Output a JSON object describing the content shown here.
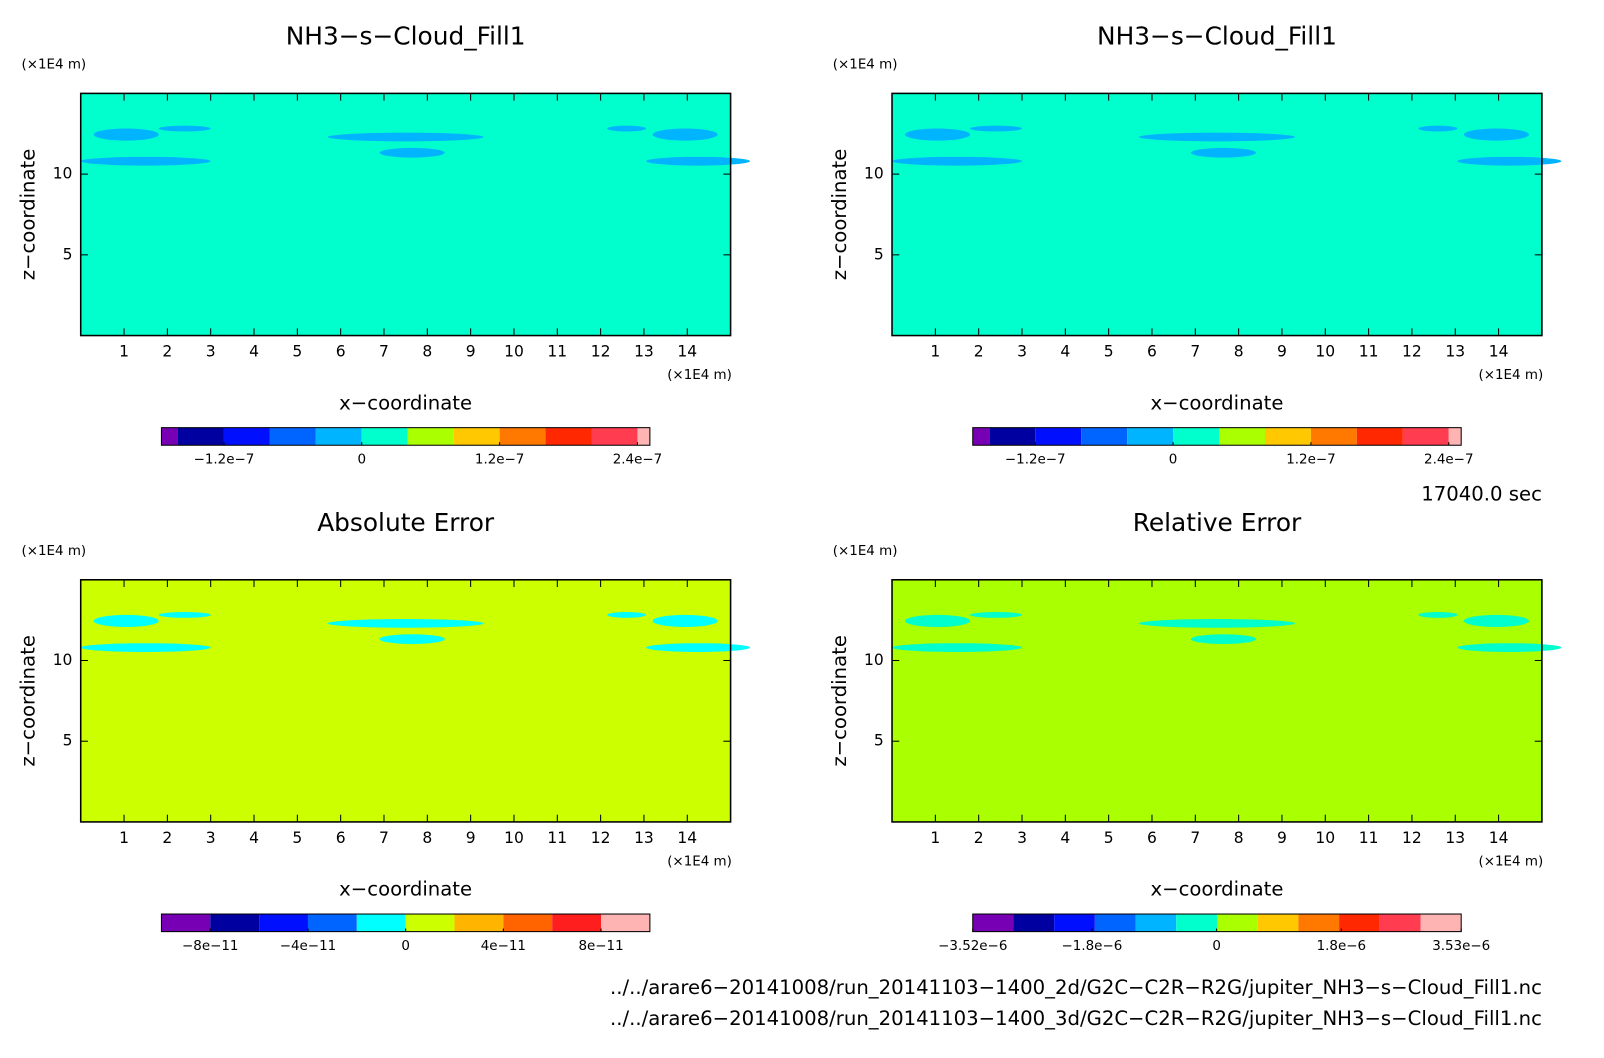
{
  "chart_data": [
    {
      "type": "contour",
      "title": "NH3−s−Cloud_Fill1",
      "x_label": "x−coordinate",
      "y_label": "z−coordinate",
      "x_unit": "(×1E4 m)",
      "y_unit": "(×1E4 m)",
      "xlim": [
        0,
        15
      ],
      "ylim": [
        0,
        15
      ],
      "xticks": [
        1,
        2,
        3,
        4,
        5,
        6,
        7,
        8,
        9,
        10,
        11,
        12,
        13,
        14
      ],
      "yticks": [
        5,
        10
      ],
      "field_color": "#00ffcc",
      "feature_color": "#00b4ff",
      "colorbar": {
        "clim": [
          -1.6e-07,
          2.4e-07
        ],
        "extend": true,
        "colors": [
          "#7800b4",
          "#0000a0",
          "#0010ff",
          "#0064ff",
          "#00b4ff",
          "#00ffcc",
          "#aaff00",
          "#ffc800",
          "#ff7800",
          "#ff2800",
          "#ff3c50",
          "#ffb4b4"
        ],
        "ticks": [
          {
            "value": -1.2e-07,
            "label": "−1.2e−7"
          },
          {
            "value": 0,
            "label": "0"
          },
          {
            "value": 1.2e-07,
            "label": "1.2e−7"
          },
          {
            "value": 2.4e-07,
            "label": "2.4e−7"
          }
        ]
      }
    },
    {
      "type": "contour",
      "title": "NH3−s−Cloud_Fill1",
      "x_label": "x−coordinate",
      "y_label": "z−coordinate",
      "x_unit": "(×1E4 m)",
      "y_unit": "(×1E4 m)",
      "xlim": [
        0,
        15
      ],
      "ylim": [
        0,
        15
      ],
      "xticks": [
        1,
        2,
        3,
        4,
        5,
        6,
        7,
        8,
        9,
        10,
        11,
        12,
        13,
        14
      ],
      "yticks": [
        5,
        10
      ],
      "field_color": "#00ffcc",
      "feature_color": "#00b4ff",
      "colorbar": {
        "clim": [
          -1.6e-07,
          2.4e-07
        ],
        "extend": true,
        "colors": [
          "#7800b4",
          "#0000a0",
          "#0010ff",
          "#0064ff",
          "#00b4ff",
          "#00ffcc",
          "#aaff00",
          "#ffc800",
          "#ff7800",
          "#ff2800",
          "#ff3c50",
          "#ffb4b4"
        ],
        "ticks": [
          {
            "value": -1.2e-07,
            "label": "−1.2e−7"
          },
          {
            "value": 0,
            "label": "0"
          },
          {
            "value": 1.2e-07,
            "label": "1.2e−7"
          },
          {
            "value": 2.4e-07,
            "label": "2.4e−7"
          }
        ]
      }
    },
    {
      "type": "contour",
      "title": "Absolute Error",
      "x_label": "x−coordinate",
      "y_label": "z−coordinate",
      "x_unit": "(×1E4 m)",
      "y_unit": "(×1E4 m)",
      "xlim": [
        0,
        15
      ],
      "ylim": [
        0,
        15
      ],
      "xticks": [
        1,
        2,
        3,
        4,
        5,
        6,
        7,
        8,
        9,
        10,
        11,
        12,
        13,
        14
      ],
      "yticks": [
        5,
        10
      ],
      "field_color": "#ccff00",
      "feature_color": "#00ffff",
      "colorbar": {
        "clim": [
          -1e-10,
          1e-10
        ],
        "extend": false,
        "colors": [
          "#7800b4",
          "#0000a0",
          "#0010ff",
          "#0064ff",
          "#00ffff",
          "#ccff00",
          "#ffb400",
          "#ff6400",
          "#ff1e1e",
          "#ffb4b4"
        ],
        "ticks": [
          {
            "value": -8e-11,
            "label": "−8e−11"
          },
          {
            "value": -4e-11,
            "label": "−4e−11"
          },
          {
            "value": 0,
            "label": "0"
          },
          {
            "value": 4e-11,
            "label": "4e−11"
          },
          {
            "value": 8e-11,
            "label": "8e−11"
          }
        ]
      }
    },
    {
      "type": "contour",
      "title": "Relative Error",
      "x_label": "x−coordinate",
      "y_label": "z−coordinate",
      "x_unit": "(×1E4 m)",
      "y_unit": "(×1E4 m)",
      "xlim": [
        0,
        15
      ],
      "ylim": [
        0,
        15
      ],
      "xticks": [
        1,
        2,
        3,
        4,
        5,
        6,
        7,
        8,
        9,
        10,
        11,
        12,
        13,
        14
      ],
      "yticks": [
        5,
        10
      ],
      "field_color": "#aaff00",
      "feature_color": "#00ffcc",
      "colorbar": {
        "clim": [
          -3.52e-06,
          3.53e-06
        ],
        "extend": false,
        "colors": [
          "#7800b4",
          "#0000a0",
          "#0010ff",
          "#0064ff",
          "#00b4ff",
          "#00ffcc",
          "#aaff00",
          "#ffc800",
          "#ff7800",
          "#ff2800",
          "#ff3c50",
          "#ffb4b4"
        ],
        "ticks": [
          {
            "value": -3.52e-06,
            "label": "−3.52e−6"
          },
          {
            "value": -1.8e-06,
            "label": "−1.8e−6"
          },
          {
            "value": 0,
            "label": "0"
          },
          {
            "value": 1.8e-06,
            "label": "1.8e−6"
          },
          {
            "value": 3.53e-06,
            "label": "3.53e−6"
          }
        ]
      }
    }
  ],
  "time_label": "17040.0 sec",
  "file_paths": [
    "../../arare6−20141008/run_20141103−1400_2d/G2C−C2R−R2G/jupiter_NH3−s−Cloud_Fill1.nc",
    "../../arare6−20141008/run_20141103−1400_3d/G2C−C2R−R2G/jupiter_NH3−s−Cloud_Fill1.nc"
  ]
}
